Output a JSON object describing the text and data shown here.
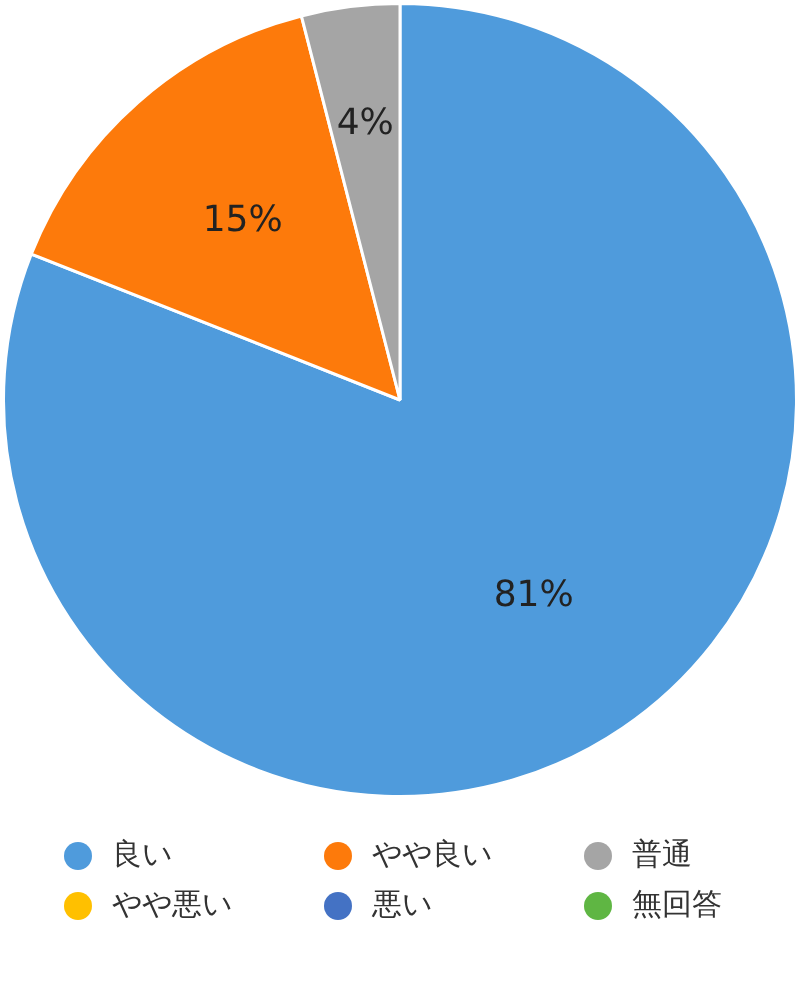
{
  "chart_data": {
    "type": "pie",
    "categories": [
      "良い",
      "やや良い",
      "普通",
      "やや悪い",
      "悪い",
      "無回答"
    ],
    "values": [
      81,
      15,
      4,
      0,
      0,
      0
    ],
    "colors": [
      "#4f9bdc",
      "#fd7a0b",
      "#a5a5a5",
      "#ffc000",
      "#4472c4",
      "#5fb643"
    ],
    "value_labels": [
      "81%",
      "15%",
      "4%",
      null,
      null,
      null
    ],
    "legend": "bottom"
  }
}
